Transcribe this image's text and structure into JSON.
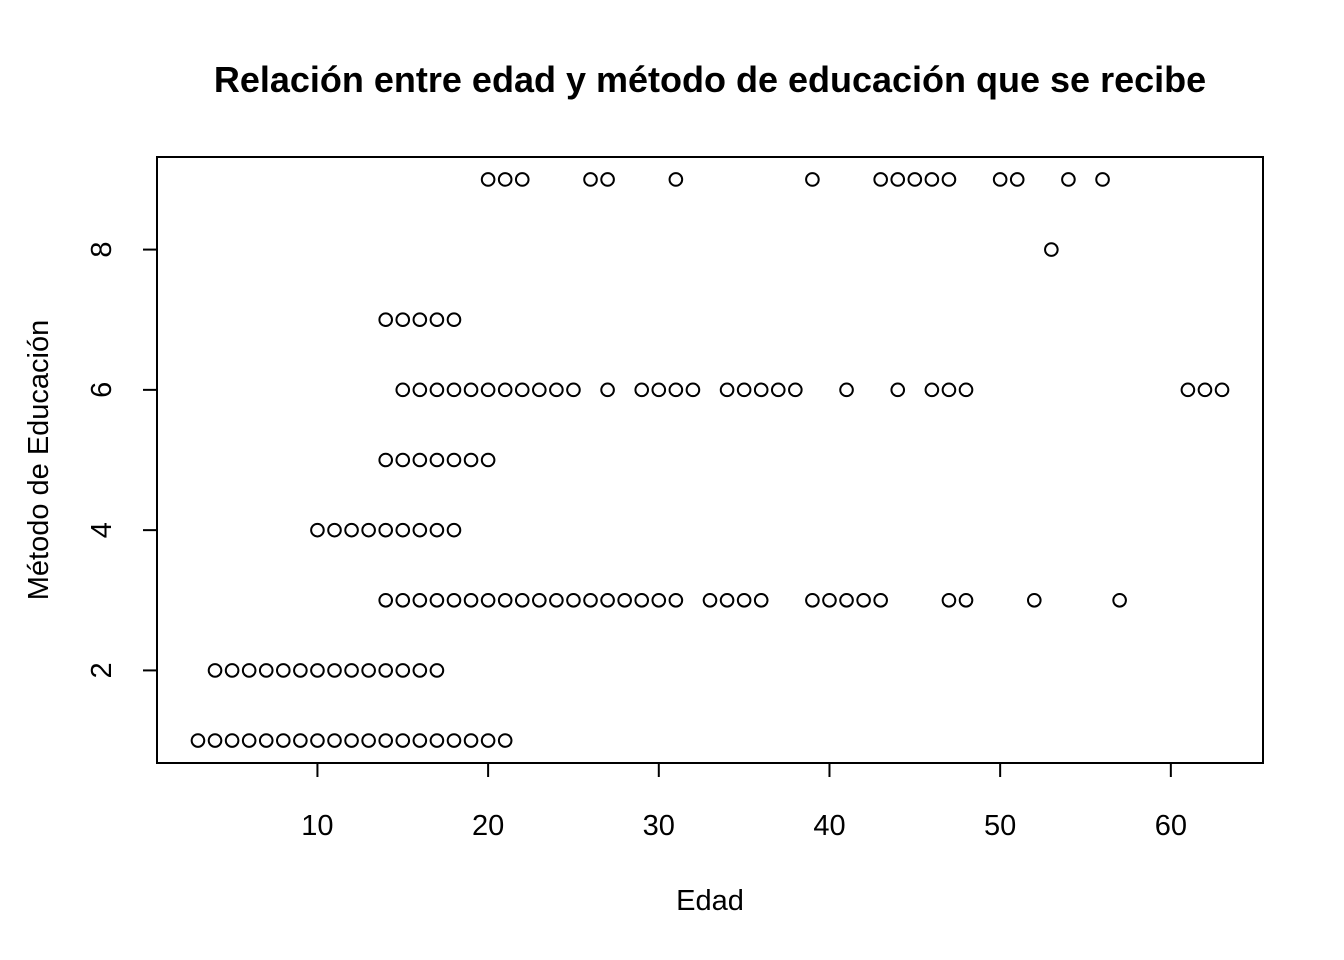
{
  "chart_data": {
    "type": "scatter",
    "title": "Relación entre edad y método de educación que se recibe",
    "xlabel": "Edad",
    "ylabel": "Método de Educación",
    "xlim": [
      0.6,
      65.4
    ],
    "ylim": [
      0.68,
      9.32
    ],
    "xticks": [
      10,
      20,
      30,
      40,
      50,
      60
    ],
    "yticks": [
      2,
      4,
      6,
      8
    ],
    "grid": false,
    "series": [
      {
        "points": [
          [
            3,
            1
          ],
          [
            4,
            1
          ],
          [
            5,
            1
          ],
          [
            6,
            1
          ],
          [
            7,
            1
          ],
          [
            8,
            1
          ],
          [
            9,
            1
          ],
          [
            10,
            1
          ],
          [
            11,
            1
          ],
          [
            12,
            1
          ],
          [
            13,
            1
          ],
          [
            14,
            1
          ],
          [
            15,
            1
          ],
          [
            16,
            1
          ],
          [
            17,
            1
          ],
          [
            18,
            1
          ],
          [
            19,
            1
          ],
          [
            20,
            1
          ],
          [
            21,
            1
          ],
          [
            4,
            2
          ],
          [
            5,
            2
          ],
          [
            6,
            2
          ],
          [
            7,
            2
          ],
          [
            8,
            2
          ],
          [
            9,
            2
          ],
          [
            10,
            2
          ],
          [
            11,
            2
          ],
          [
            12,
            2
          ],
          [
            13,
            2
          ],
          [
            14,
            2
          ],
          [
            15,
            2
          ],
          [
            16,
            2
          ],
          [
            17,
            2
          ],
          [
            14,
            3
          ],
          [
            15,
            3
          ],
          [
            16,
            3
          ],
          [
            17,
            3
          ],
          [
            18,
            3
          ],
          [
            19,
            3
          ],
          [
            20,
            3
          ],
          [
            21,
            3
          ],
          [
            22,
            3
          ],
          [
            23,
            3
          ],
          [
            24,
            3
          ],
          [
            25,
            3
          ],
          [
            26,
            3
          ],
          [
            27,
            3
          ],
          [
            28,
            3
          ],
          [
            29,
            3
          ],
          [
            30,
            3
          ],
          [
            31,
            3
          ],
          [
            33,
            3
          ],
          [
            34,
            3
          ],
          [
            35,
            3
          ],
          [
            36,
            3
          ],
          [
            39,
            3
          ],
          [
            40,
            3
          ],
          [
            41,
            3
          ],
          [
            42,
            3
          ],
          [
            43,
            3
          ],
          [
            47,
            3
          ],
          [
            48,
            3
          ],
          [
            52,
            3
          ],
          [
            57,
            3
          ],
          [
            10,
            4
          ],
          [
            11,
            4
          ],
          [
            12,
            4
          ],
          [
            13,
            4
          ],
          [
            14,
            4
          ],
          [
            15,
            4
          ],
          [
            16,
            4
          ],
          [
            17,
            4
          ],
          [
            18,
            4
          ],
          [
            14,
            5
          ],
          [
            15,
            5
          ],
          [
            16,
            5
          ],
          [
            17,
            5
          ],
          [
            18,
            5
          ],
          [
            19,
            5
          ],
          [
            20,
            5
          ],
          [
            15,
            6
          ],
          [
            16,
            6
          ],
          [
            17,
            6
          ],
          [
            18,
            6
          ],
          [
            19,
            6
          ],
          [
            20,
            6
          ],
          [
            21,
            6
          ],
          [
            22,
            6
          ],
          [
            23,
            6
          ],
          [
            24,
            6
          ],
          [
            25,
            6
          ],
          [
            27,
            6
          ],
          [
            29,
            6
          ],
          [
            30,
            6
          ],
          [
            31,
            6
          ],
          [
            32,
            6
          ],
          [
            34,
            6
          ],
          [
            35,
            6
          ],
          [
            36,
            6
          ],
          [
            37,
            6
          ],
          [
            38,
            6
          ],
          [
            41,
            6
          ],
          [
            44,
            6
          ],
          [
            46,
            6
          ],
          [
            47,
            6
          ],
          [
            48,
            6
          ],
          [
            61,
            6
          ],
          [
            62,
            6
          ],
          [
            63,
            6
          ],
          [
            14,
            7
          ],
          [
            15,
            7
          ],
          [
            16,
            7
          ],
          [
            17,
            7
          ],
          [
            18,
            7
          ],
          [
            53,
            8
          ],
          [
            20,
            9
          ],
          [
            21,
            9
          ],
          [
            22,
            9
          ],
          [
            26,
            9
          ],
          [
            27,
            9
          ],
          [
            31,
            9
          ],
          [
            39,
            9
          ],
          [
            43,
            9
          ],
          [
            44,
            9
          ],
          [
            45,
            9
          ],
          [
            46,
            9
          ],
          [
            47,
            9
          ],
          [
            50,
            9
          ],
          [
            51,
            9
          ],
          [
            54,
            9
          ],
          [
            56,
            9
          ]
        ]
      }
    ]
  }
}
